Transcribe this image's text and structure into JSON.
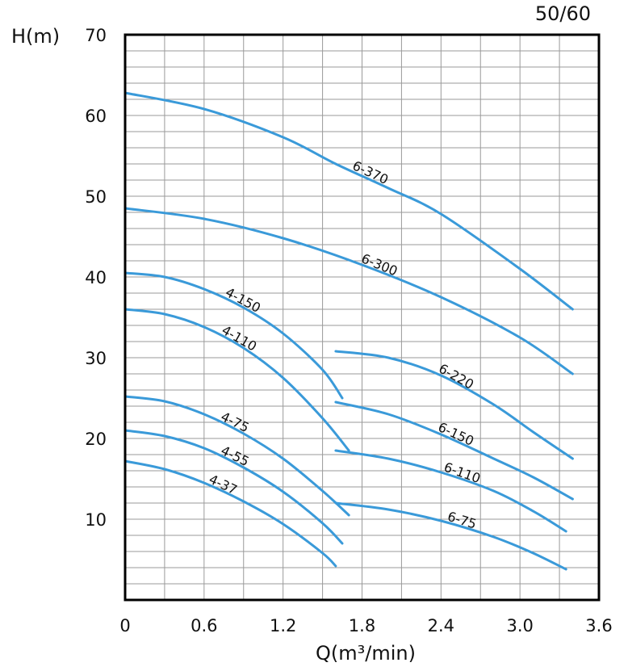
{
  "chart_data": {
    "type": "line",
    "subtitle": "50/60",
    "ylabel": "H(m)",
    "xlabel": "Q(m³/min)",
    "xlim": [
      0,
      3.6
    ],
    "ylim": [
      0,
      70
    ],
    "x_ticks": [
      "0",
      "0.6",
      "1.2",
      "1.8",
      "2.4",
      "3.0",
      "3.6"
    ],
    "y_ticks": [
      "10",
      "20",
      "30",
      "40",
      "50",
      "60",
      "70"
    ],
    "grid": true,
    "series_color": "#3a9ad9",
    "series": [
      {
        "name": "6-370",
        "x": [
          0,
          0.6,
          1.2,
          1.6,
          2.0,
          2.4,
          3.0,
          3.4
        ],
        "y": [
          62.8,
          60.8,
          57.3,
          54.0,
          51.0,
          47.8,
          41.0,
          36.0
        ]
      },
      {
        "name": "6-300",
        "x": [
          0,
          0.6,
          1.2,
          1.8,
          2.4,
          3.0,
          3.4
        ],
        "y": [
          48.5,
          47.2,
          44.8,
          41.5,
          37.5,
          32.5,
          28.0
        ]
      },
      {
        "name": "4-150",
        "x": [
          0,
          0.3,
          0.6,
          0.9,
          1.2,
          1.5,
          1.65
        ],
        "y": [
          40.5,
          40.0,
          38.5,
          36.2,
          33.0,
          28.5,
          25.0
        ]
      },
      {
        "name": "4-110",
        "x": [
          0,
          0.3,
          0.6,
          0.9,
          1.2,
          1.5,
          1.7
        ],
        "y": [
          36.0,
          35.4,
          33.8,
          31.2,
          27.5,
          22.5,
          18.5
        ]
      },
      {
        "name": "4-75",
        "x": [
          0,
          0.3,
          0.6,
          0.9,
          1.2,
          1.5,
          1.7
        ],
        "y": [
          25.2,
          24.6,
          23.0,
          20.6,
          17.5,
          13.5,
          10.5
        ]
      },
      {
        "name": "4-55",
        "x": [
          0,
          0.3,
          0.6,
          0.9,
          1.2,
          1.5,
          1.65
        ],
        "y": [
          21.0,
          20.3,
          18.8,
          16.4,
          13.4,
          9.5,
          7.0
        ]
      },
      {
        "name": "4-37",
        "x": [
          0,
          0.3,
          0.6,
          0.9,
          1.2,
          1.5,
          1.6
        ],
        "y": [
          17.2,
          16.2,
          14.5,
          12.2,
          9.4,
          5.8,
          4.2
        ]
      },
      {
        "name": "6-220",
        "x": [
          1.6,
          2.0,
          2.4,
          2.8,
          3.1,
          3.4
        ],
        "y": [
          30.8,
          30.0,
          27.8,
          24.2,
          20.8,
          17.5
        ]
      },
      {
        "name": "6-150",
        "x": [
          1.6,
          2.0,
          2.4,
          2.8,
          3.1,
          3.4
        ],
        "y": [
          24.5,
          23.0,
          20.5,
          17.5,
          15.2,
          12.5
        ]
      },
      {
        "name": "6-110",
        "x": [
          1.6,
          2.0,
          2.4,
          2.8,
          3.1,
          3.35
        ],
        "y": [
          18.5,
          17.5,
          15.8,
          13.5,
          11.0,
          8.5
        ]
      },
      {
        "name": "6-75",
        "x": [
          1.6,
          2.0,
          2.4,
          2.8,
          3.1,
          3.35
        ],
        "y": [
          12.0,
          11.2,
          9.8,
          7.8,
          5.8,
          3.8
        ]
      }
    ]
  }
}
